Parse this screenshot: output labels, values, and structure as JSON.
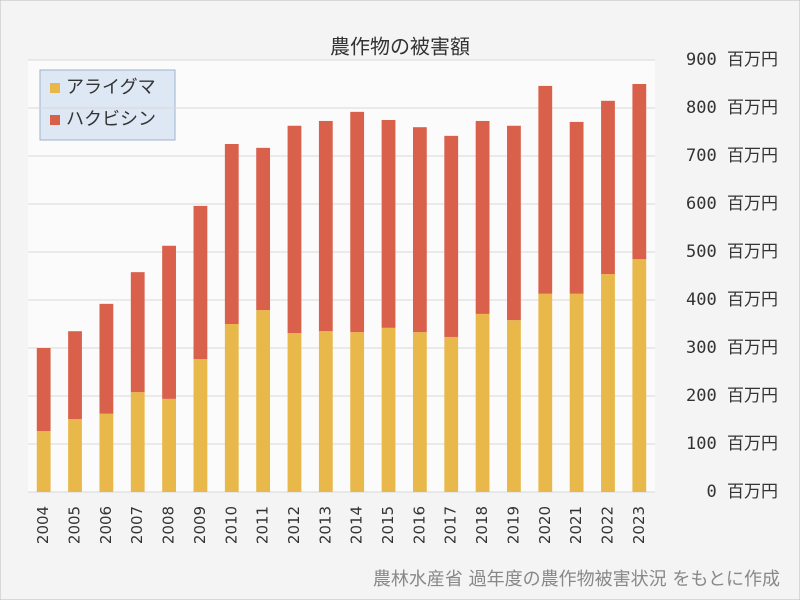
{
  "chart_data": {
    "type": "stacked_bar",
    "title": "農作物の被害額",
    "categories": [
      "2004",
      "2005",
      "2006",
      "2007",
      "2008",
      "2009",
      "2010",
      "2011",
      "2012",
      "2013",
      "2014",
      "2015",
      "2016",
      "2017",
      "2018",
      "2019",
      "2020",
      "2021",
      "2022",
      "2023"
    ],
    "series": [
      {
        "name": "アライグマ",
        "color": "#e8b84a",
        "values": [
          127,
          152,
          163,
          208,
          194,
          277,
          350,
          379,
          331,
          335,
          333,
          342,
          333,
          323,
          371,
          358,
          413,
          413,
          454,
          485
        ]
      },
      {
        "name": "ハクビシン",
        "color": "#d9604a",
        "values": [
          173,
          183,
          229,
          250,
          319,
          319,
          375,
          338,
          432,
          438,
          459,
          433,
          427,
          419,
          402,
          405,
          433,
          358,
          361,
          365
        ]
      }
    ],
    "ylim": [
      0,
      900
    ],
    "yticks": [
      {
        "value": 0,
        "label": "0 百万円"
      },
      {
        "value": 100,
        "label": "100 百万円"
      },
      {
        "value": 200,
        "label": "200 百万円"
      },
      {
        "value": 300,
        "label": "300 百万円"
      },
      {
        "value": 400,
        "label": "400 百万円"
      },
      {
        "value": 500,
        "label": "500 百万円"
      },
      {
        "value": 600,
        "label": "600 百万円"
      },
      {
        "value": 700,
        "label": "700 百万円"
      },
      {
        "value": 800,
        "label": "800 百万円"
      },
      {
        "value": 900,
        "label": "900 百万円"
      }
    ],
    "grid": true,
    "legend": "top-left",
    "source": "農林水産省 過年度の農作物被害状況 をもとに作成"
  }
}
